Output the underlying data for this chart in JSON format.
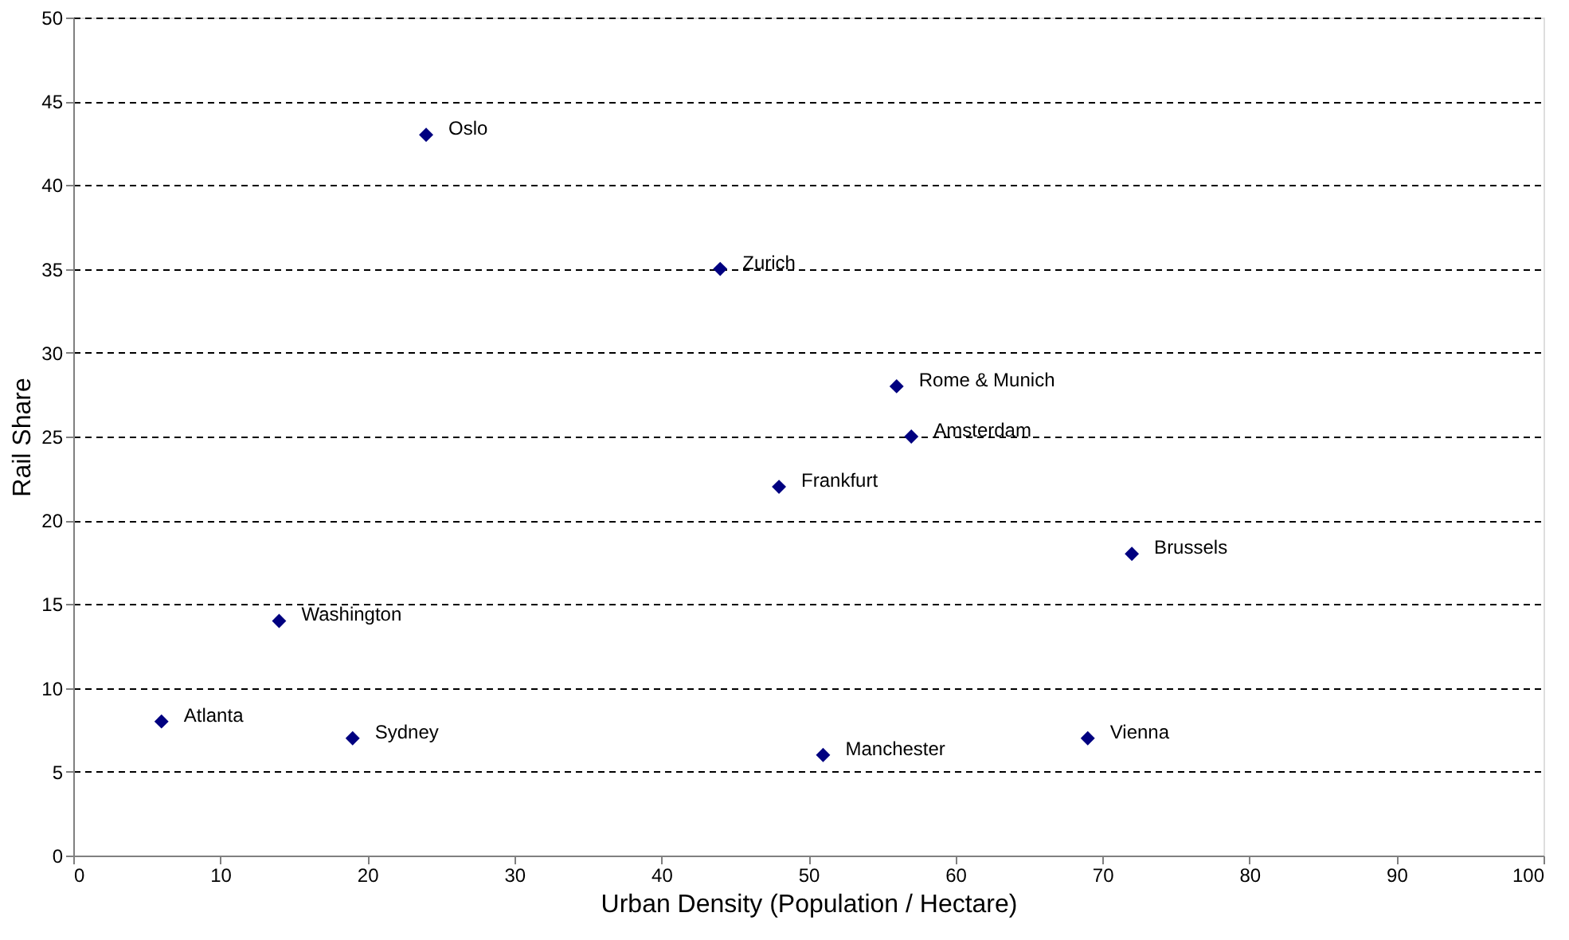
{
  "chart_data": {
    "type": "scatter",
    "xlabel": "Urban Density (Population / Hectare)",
    "ylabel": "Rail Share",
    "x": [
      24,
      44,
      56,
      57,
      48,
      72,
      14,
      6,
      19,
      51,
      69
    ],
    "series": [
      {
        "color": "#000080",
        "values": [
          43,
          35,
          28,
          25,
          22,
          18,
          14,
          8,
          7,
          6,
          7
        ]
      }
    ],
    "annotations": [
      {
        "text": "Oslo",
        "x": 24,
        "y": 43
      },
      {
        "text": "Zurich",
        "x": 44,
        "y": 35
      },
      {
        "text": "Rome & Munich",
        "x": 56,
        "y": 28
      },
      {
        "text": "Amsterdam",
        "x": 57,
        "y": 25
      },
      {
        "text": "Frankfurt",
        "x": 48,
        "y": 22
      },
      {
        "text": "Brussels",
        "x": 72,
        "y": 18
      },
      {
        "text": "Washington",
        "x": 14,
        "y": 14
      },
      {
        "text": "Atlanta",
        "x": 6,
        "y": 8
      },
      {
        "text": "Sydney",
        "x": 19,
        "y": 7
      },
      {
        "text": "Manchester",
        "x": 51,
        "y": 6
      },
      {
        "text": "Vienna",
        "x": 69,
        "y": 7
      }
    ],
    "xlim": [
      0,
      100
    ],
    "xticks": [
      0,
      10,
      20,
      30,
      40,
      50,
      60,
      70,
      80,
      90,
      100
    ],
    "ylim": [
      0,
      50
    ],
    "yticks": [
      0,
      5,
      10,
      15,
      20,
      25,
      30,
      35,
      40,
      45,
      50
    ],
    "grid": "y",
    "marker": "diamond"
  }
}
